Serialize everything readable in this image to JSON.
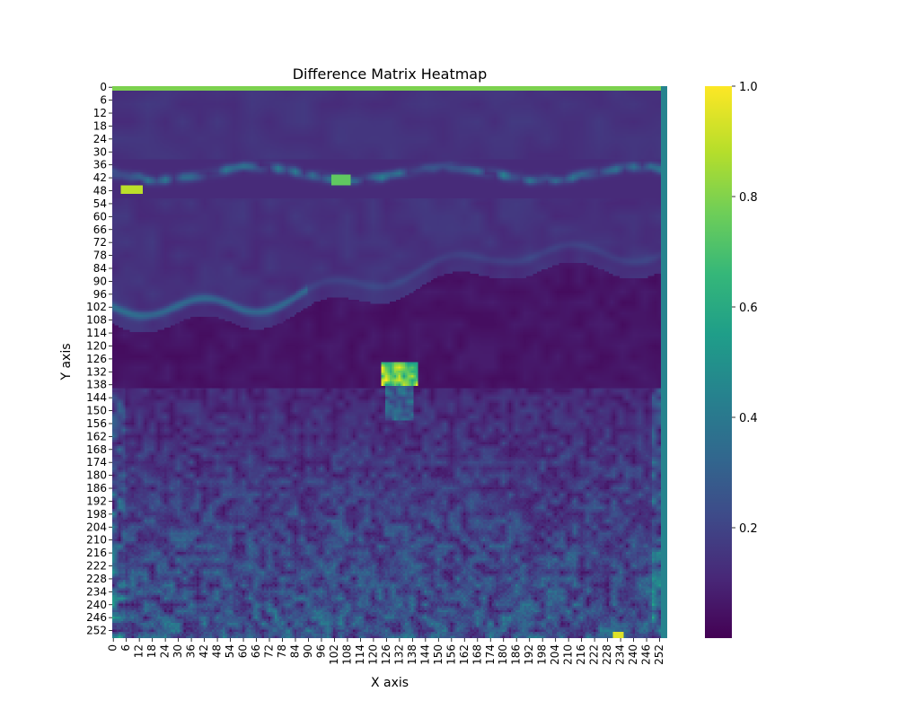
{
  "chart_data": {
    "type": "heatmap",
    "title": "Difference Matrix Heatmap",
    "xlabel": "X axis",
    "ylabel": "Y axis",
    "grid_size": [
      256,
      256
    ],
    "x_ticks": [
      "0",
      "6",
      "12",
      "18",
      "24",
      "30",
      "36",
      "42",
      "48",
      "54",
      "60",
      "66",
      "72",
      "78",
      "84",
      "90",
      "96",
      "102",
      "108",
      "114",
      "120",
      "126",
      "132",
      "138",
      "144",
      "150",
      "156",
      "162",
      "168",
      "174",
      "180",
      "186",
      "192",
      "198",
      "204",
      "210",
      "216",
      "222",
      "228",
      "234",
      "240",
      "246",
      "252"
    ],
    "y_ticks": [
      "0",
      "6",
      "12",
      "18",
      "24",
      "30",
      "36",
      "42",
      "48",
      "54",
      "60",
      "66",
      "72",
      "78",
      "84",
      "90",
      "96",
      "102",
      "108",
      "114",
      "120",
      "126",
      "132",
      "138",
      "144",
      "150",
      "156",
      "162",
      "168",
      "174",
      "180",
      "186",
      "192",
      "198",
      "204",
      "210",
      "216",
      "222",
      "228",
      "234",
      "240",
      "246",
      "252"
    ],
    "colorbar": {
      "colormap": "viridis",
      "range": [
        0.0,
        1.0
      ],
      "ticks": [
        "0.2",
        "0.4",
        "0.6",
        "0.8",
        "1.0"
      ],
      "colors": [
        "#440154",
        "#482878",
        "#3e4a89",
        "#31688e",
        "#26828e",
        "#1f9e89",
        "#35b779",
        "#6ece58",
        "#b5de2b",
        "#fde725"
      ]
    },
    "grid": false
  }
}
